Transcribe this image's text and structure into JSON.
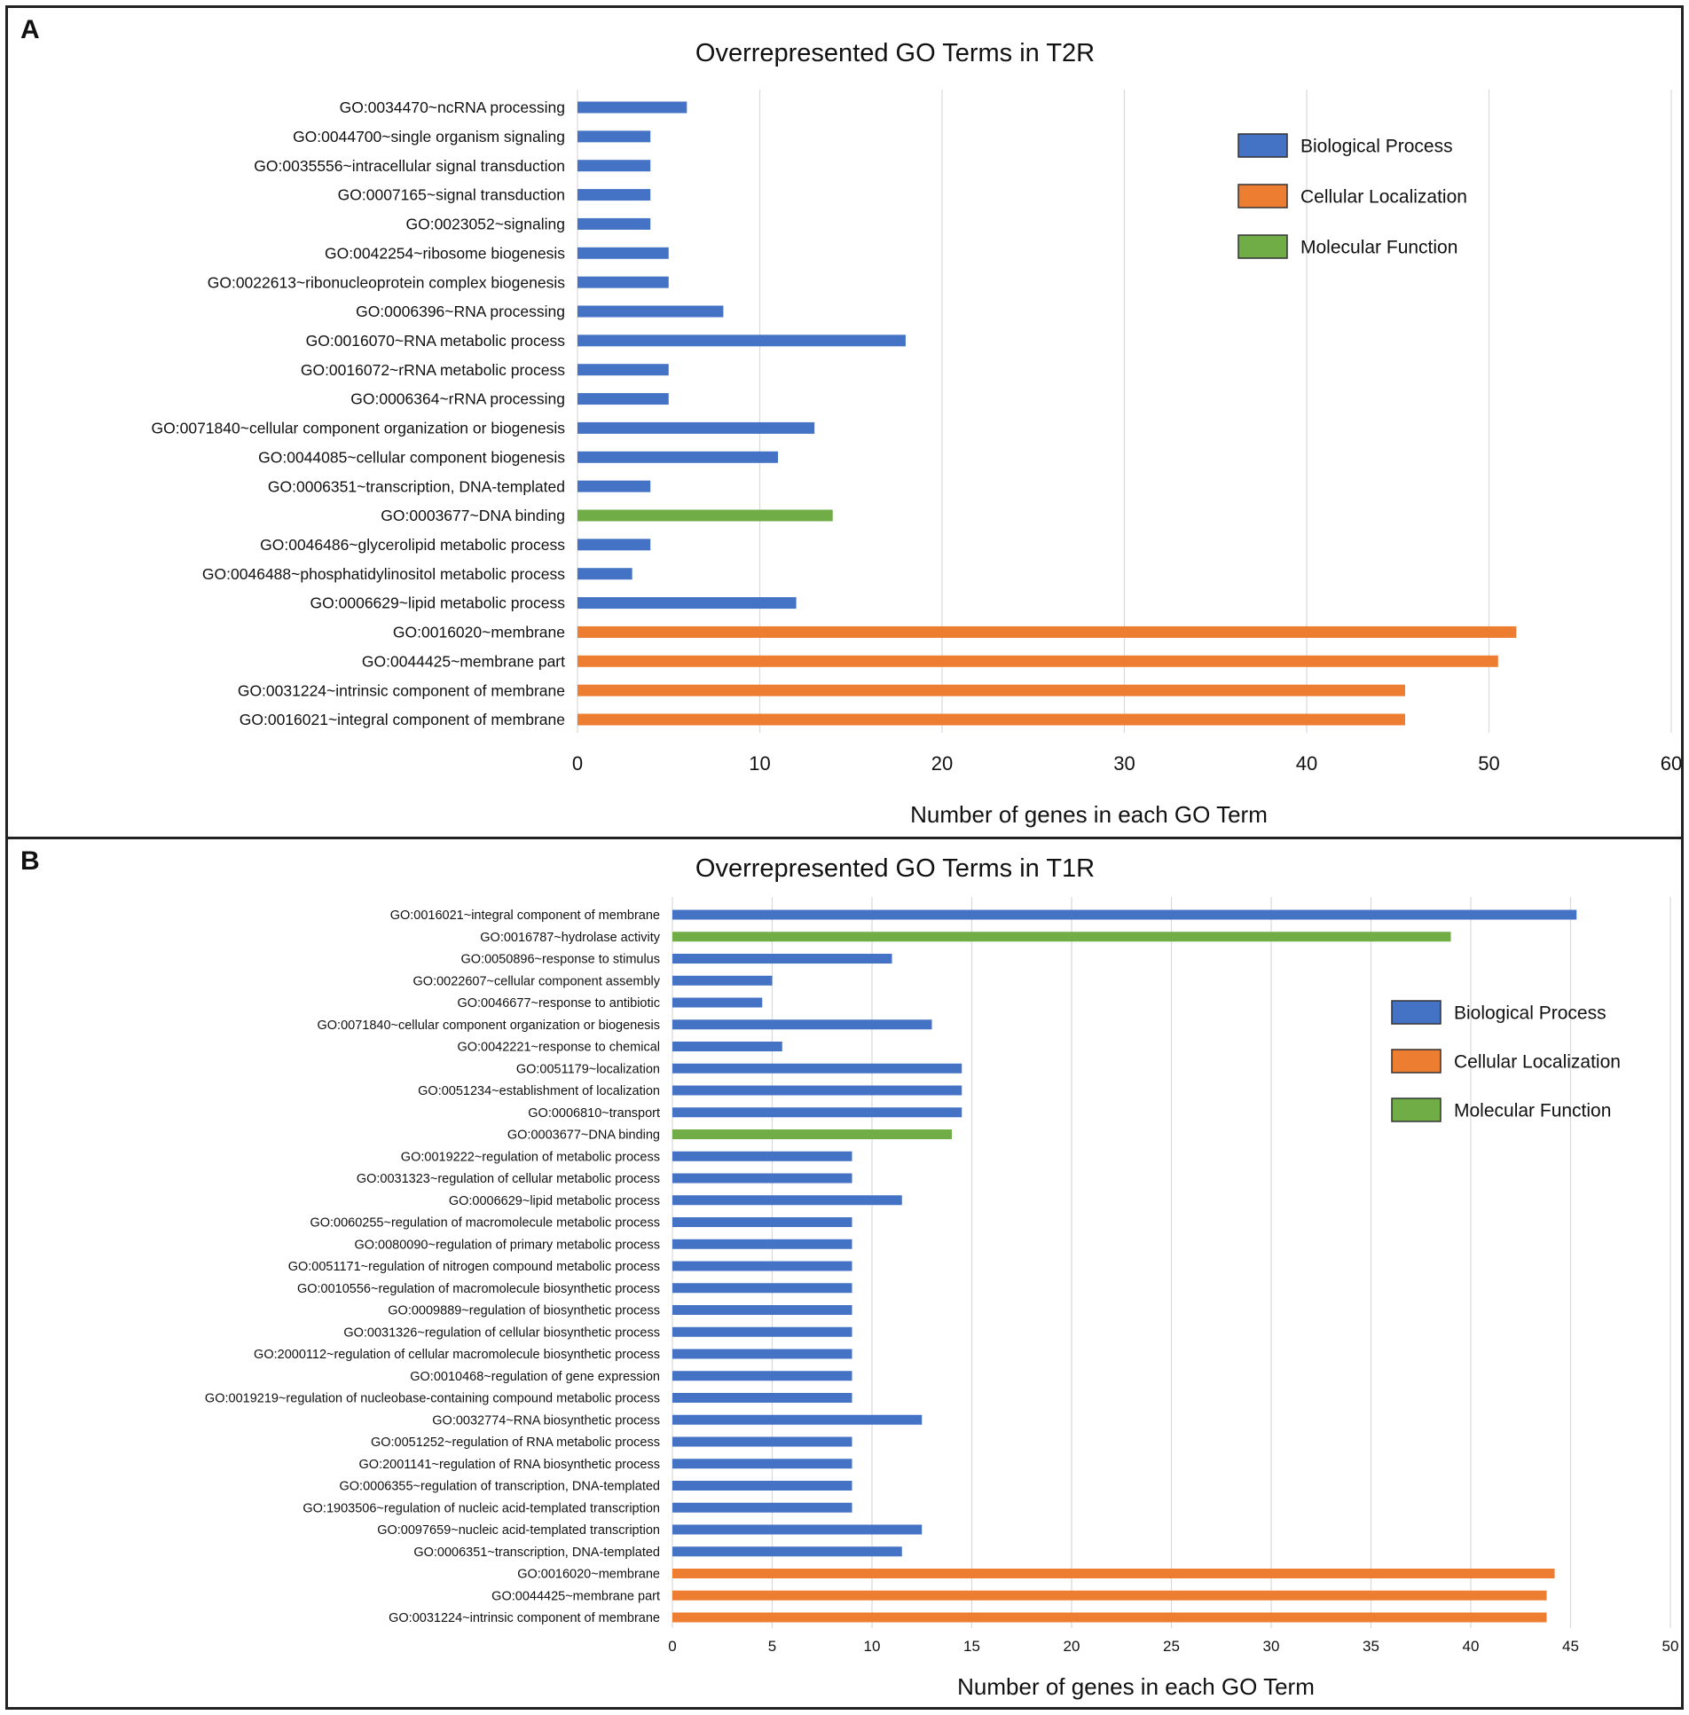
{
  "colors": {
    "biological_process": "#4472C4",
    "cellular_localization": "#ED7D31",
    "molecular_function": "#70AD47",
    "grid": "#d9d9d9",
    "text": "#111111"
  },
  "panel_labels": [
    "A",
    "B"
  ],
  "chart_data": [
    {
      "type": "bar",
      "orientation": "horizontal",
      "panel": "A",
      "title": "Overrepresented GO Terms in T2R",
      "xlabel": "Number of genes in each GO Term",
      "ylabel": "",
      "xlim": [
        0,
        60
      ],
      "xticks": [
        0,
        10,
        20,
        30,
        40,
        50,
        60
      ],
      "grid": true,
      "legend": {
        "placement": "top-right",
        "entries": [
          {
            "label": "Biological Process",
            "key": "biological_process"
          },
          {
            "label": "Cellular  Localization",
            "key": "cellular_localization"
          },
          {
            "label": "Molecular Function",
            "key": "molecular_function"
          }
        ]
      },
      "bars": [
        {
          "label": "GO:0034470~ncRNA processing",
          "value": 6,
          "category": "biological_process"
        },
        {
          "label": "GO:0044700~single organism signaling",
          "value": 4,
          "category": "biological_process"
        },
        {
          "label": "GO:0035556~intracellular signal transduction",
          "value": 4,
          "category": "biological_process"
        },
        {
          "label": "GO:0007165~signal transduction",
          "value": 4,
          "category": "biological_process"
        },
        {
          "label": "GO:0023052~signaling",
          "value": 4,
          "category": "biological_process"
        },
        {
          "label": "GO:0042254~ribosome biogenesis",
          "value": 5,
          "category": "biological_process"
        },
        {
          "label": "GO:0022613~ribonucleoprotein complex biogenesis",
          "value": 5,
          "category": "biological_process"
        },
        {
          "label": "GO:0006396~RNA processing",
          "value": 8,
          "category": "biological_process"
        },
        {
          "label": "GO:0016070~RNA metabolic process",
          "value": 18,
          "category": "biological_process"
        },
        {
          "label": "GO:0016072~rRNA metabolic process",
          "value": 5,
          "category": "biological_process"
        },
        {
          "label": "GO:0006364~rRNA processing",
          "value": 5,
          "category": "biological_process"
        },
        {
          "label": "GO:0071840~cellular component organization or biogenesis",
          "value": 13,
          "category": "biological_process"
        },
        {
          "label": "GO:0044085~cellular component biogenesis",
          "value": 11,
          "category": "biological_process"
        },
        {
          "label": "GO:0006351~transcription, DNA-templated",
          "value": 4,
          "category": "biological_process"
        },
        {
          "label": "GO:0003677~DNA binding",
          "value": 14,
          "category": "molecular_function"
        },
        {
          "label": "GO:0046486~glycerolipid metabolic process",
          "value": 4,
          "category": "biological_process"
        },
        {
          "label": "GO:0046488~phosphatidylinositol metabolic process",
          "value": 3,
          "category": "biological_process"
        },
        {
          "label": "GO:0006629~lipid metabolic process",
          "value": 12,
          "category": "biological_process"
        },
        {
          "label": "GO:0016020~membrane",
          "value": 51.5,
          "category": "cellular_localization"
        },
        {
          "label": "GO:0044425~membrane part",
          "value": 50.5,
          "category": "cellular_localization"
        },
        {
          "label": "GO:0031224~intrinsic component of membrane",
          "value": 45.4,
          "category": "cellular_localization"
        },
        {
          "label": "GO:0016021~integral component of membrane",
          "value": 45.4,
          "category": "cellular_localization"
        }
      ]
    },
    {
      "type": "bar",
      "orientation": "horizontal",
      "panel": "B",
      "title": "Overrepresented GO Terms in T1R",
      "xlabel": "Number of genes in each GO Term",
      "ylabel": "",
      "xlim": [
        0,
        50
      ],
      "xticks": [
        0,
        5,
        10,
        15,
        20,
        25,
        30,
        35,
        40,
        45,
        50
      ],
      "grid": true,
      "legend": {
        "placement": "right",
        "entries": [
          {
            "label": "Biological Process",
            "key": "biological_process"
          },
          {
            "label": "Cellular  Localization",
            "key": "cellular_localization"
          },
          {
            "label": "Molecular Function",
            "key": "molecular_function"
          }
        ]
      },
      "bars": [
        {
          "label": "GO:0016021~integral component of membrane",
          "value": 45.3,
          "category": "biological_process"
        },
        {
          "label": "GO:0016787~hydrolase activity",
          "value": 39,
          "category": "molecular_function"
        },
        {
          "label": "GO:0050896~response to stimulus",
          "value": 11,
          "category": "biological_process"
        },
        {
          "label": "GO:0022607~cellular component assembly",
          "value": 5,
          "category": "biological_process"
        },
        {
          "label": "GO:0046677~response to antibiotic",
          "value": 4.5,
          "category": "biological_process"
        },
        {
          "label": "GO:0071840~cellular component organization or biogenesis",
          "value": 13,
          "category": "biological_process"
        },
        {
          "label": "GO:0042221~response to chemical",
          "value": 5.5,
          "category": "biological_process"
        },
        {
          "label": "GO:0051179~localization",
          "value": 14.5,
          "category": "biological_process"
        },
        {
          "label": "GO:0051234~establishment of localization",
          "value": 14.5,
          "category": "biological_process"
        },
        {
          "label": "GO:0006810~transport",
          "value": 14.5,
          "category": "biological_process"
        },
        {
          "label": "GO:0003677~DNA binding",
          "value": 14,
          "category": "molecular_function"
        },
        {
          "label": "GO:0019222~regulation of metabolic process",
          "value": 9,
          "category": "biological_process"
        },
        {
          "label": "GO:0031323~regulation of cellular metabolic process",
          "value": 9,
          "category": "biological_process"
        },
        {
          "label": "GO:0006629~lipid metabolic process",
          "value": 11.5,
          "category": "biological_process"
        },
        {
          "label": "GO:0060255~regulation of macromolecule metabolic process",
          "value": 9,
          "category": "biological_process"
        },
        {
          "label": "GO:0080090~regulation of primary metabolic process",
          "value": 9,
          "category": "biological_process"
        },
        {
          "label": "GO:0051171~regulation of nitrogen compound metabolic process",
          "value": 9,
          "category": "biological_process"
        },
        {
          "label": "GO:0010556~regulation of macromolecule biosynthetic process",
          "value": 9,
          "category": "biological_process"
        },
        {
          "label": "GO:0009889~regulation of biosynthetic process",
          "value": 9,
          "category": "biological_process"
        },
        {
          "label": "GO:0031326~regulation of cellular biosynthetic process",
          "value": 9,
          "category": "biological_process"
        },
        {
          "label": "GO:2000112~regulation of cellular macromolecule biosynthetic process",
          "value": 9,
          "category": "biological_process"
        },
        {
          "label": "GO:0010468~regulation of gene expression",
          "value": 9,
          "category": "biological_process"
        },
        {
          "label": "GO:0019219~regulation of nucleobase-containing compound metabolic process",
          "value": 9,
          "category": "biological_process"
        },
        {
          "label": "GO:0032774~RNA biosynthetic process",
          "value": 12.5,
          "category": "biological_process"
        },
        {
          "label": "GO:0051252~regulation of RNA metabolic process",
          "value": 9,
          "category": "biological_process"
        },
        {
          "label": "GO:2001141~regulation of RNA biosynthetic process",
          "value": 9,
          "category": "biological_process"
        },
        {
          "label": "GO:0006355~regulation of transcription, DNA-templated",
          "value": 9,
          "category": "biological_process"
        },
        {
          "label": "GO:1903506~regulation of nucleic acid-templated transcription",
          "value": 9,
          "category": "biological_process"
        },
        {
          "label": "GO:0097659~nucleic acid-templated transcription",
          "value": 12.5,
          "category": "biological_process"
        },
        {
          "label": "GO:0006351~transcription, DNA-templated",
          "value": 11.5,
          "category": "biological_process"
        },
        {
          "label": "GO:0016020~membrane",
          "value": 44.2,
          "category": "cellular_localization"
        },
        {
          "label": "GO:0044425~membrane part",
          "value": 43.8,
          "category": "cellular_localization"
        },
        {
          "label": "GO:0031224~intrinsic component of membrane",
          "value": 43.8,
          "category": "cellular_localization"
        }
      ]
    }
  ]
}
